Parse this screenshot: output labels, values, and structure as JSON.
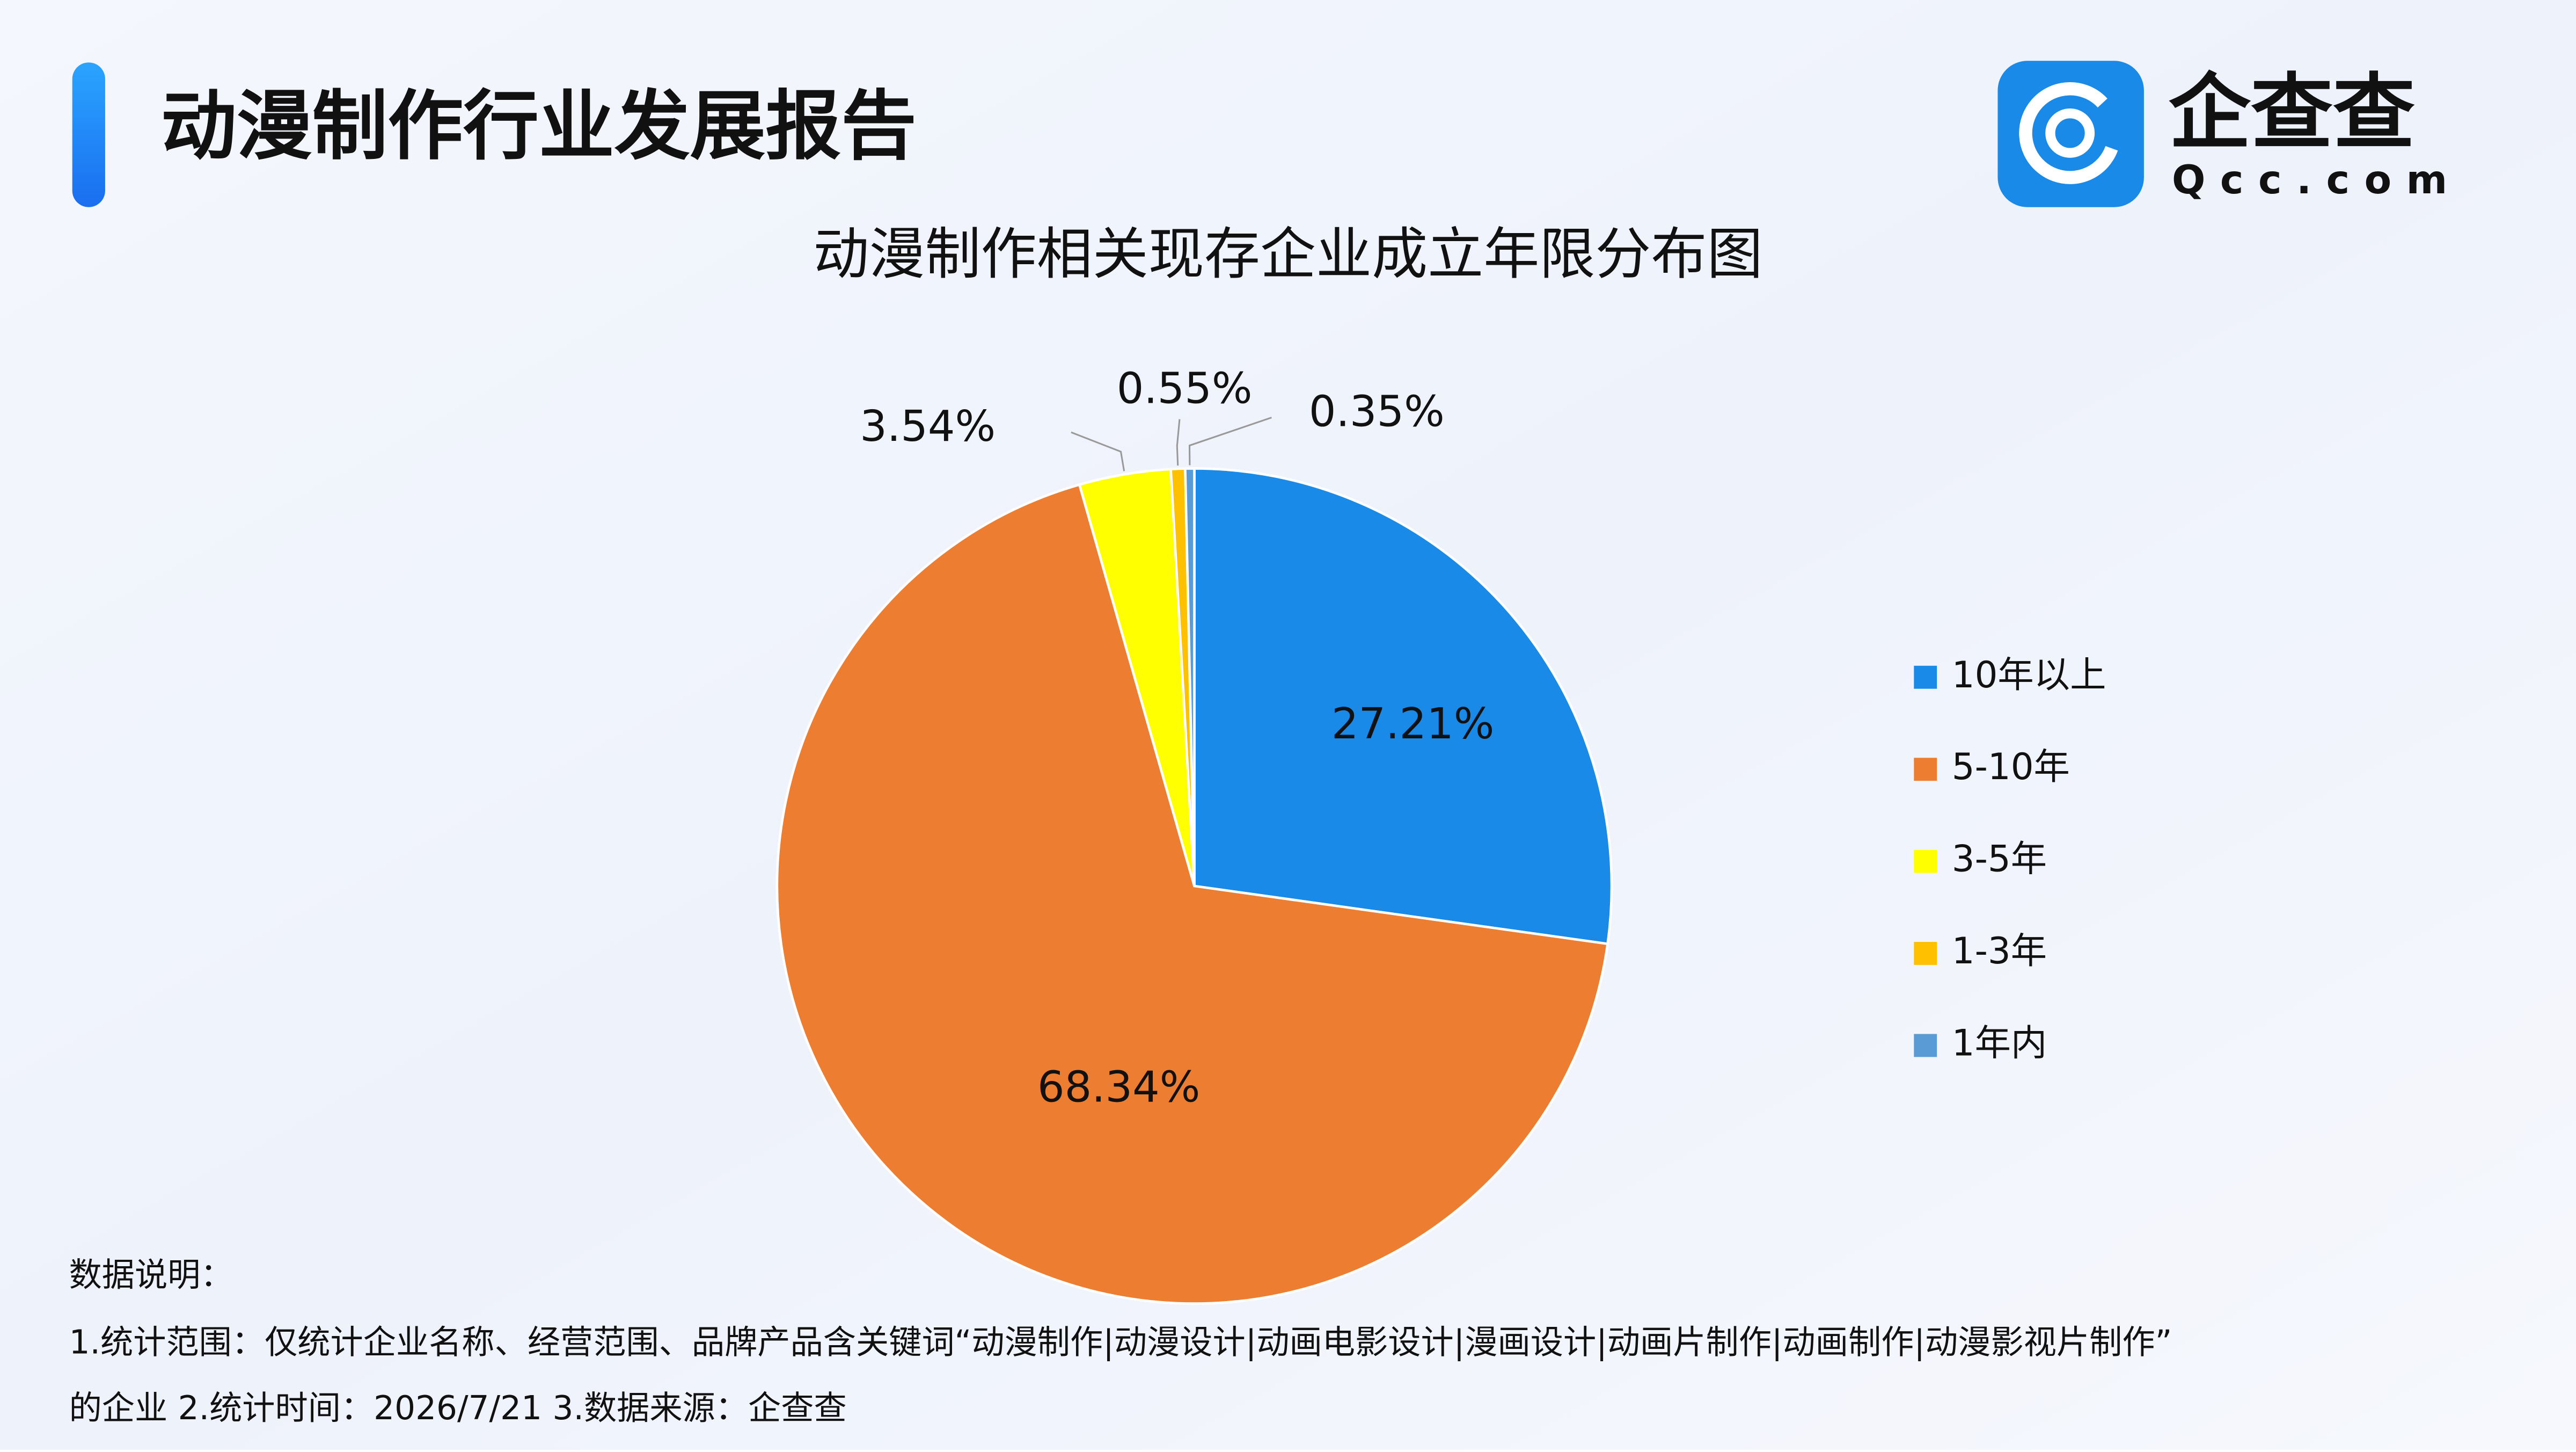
{
  "header": {
    "title": "动漫制作行业发展报告",
    "logo_text": "企查查",
    "logo_domain": "Qcc.com"
  },
  "chart_data": {
    "type": "pie",
    "title": "动漫制作相关现存企业成立年限分布图",
    "categories": [
      "10年以上",
      "5-10年",
      "3-5年",
      "1-3年",
      "1年内"
    ],
    "values": [
      27.21,
      68.34,
      3.54,
      0.55,
      0.35
    ],
    "value_labels": [
      "27.21%",
      "68.34%",
      "3.54%",
      "0.55%",
      "0.35%"
    ],
    "colors": [
      "#1a8ae8",
      "#ed7d31",
      "#ffff00",
      "#ffc000",
      "#5b9bd5"
    ],
    "legend": "right"
  },
  "notes": [
    "数据说明：",
    "1.统计范围：仅统计企业名称、经营范围、品牌产品含关键词“动漫制作|动漫设计|动画电影设计|漫画设计|动画片制作|动画制作|动漫影视片制作”",
    "的企业   2.统计时间：2026/7/21  3.数据来源：企查查"
  ]
}
